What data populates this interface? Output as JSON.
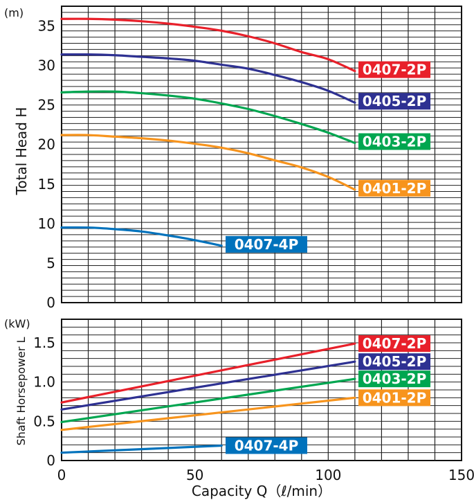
{
  "chart_data": [
    {
      "type": "line",
      "unit_label": "(m)",
      "ylabel": "Total Head H",
      "xlim": [
        0,
        150
      ],
      "ylim": [
        0,
        37.5
      ],
      "yticks": [
        0,
        5,
        10,
        15,
        20,
        25,
        30,
        35
      ],
      "grid": true,
      "series": [
        {
          "name": "0407-2P",
          "color": "#e8202a",
          "x": [
            0,
            10,
            20,
            30,
            40,
            50,
            60,
            70,
            80,
            90,
            100,
            110
          ],
          "y": [
            35.9,
            35.9,
            35.8,
            35.6,
            35.3,
            34.9,
            34.4,
            33.7,
            32.8,
            31.7,
            30.8,
            29.3
          ]
        },
        {
          "name": "0405-2P",
          "color": "#2e3192",
          "x": [
            0,
            10,
            20,
            30,
            40,
            50,
            60,
            70,
            80,
            90,
            100,
            110
          ],
          "y": [
            31.4,
            31.4,
            31.3,
            31.1,
            30.9,
            30.6,
            30.1,
            29.6,
            28.8,
            27.9,
            26.8,
            25.3
          ]
        },
        {
          "name": "0403-2P",
          "color": "#00a650",
          "x": [
            0,
            10,
            20,
            30,
            40,
            50,
            60,
            70,
            80,
            90,
            100,
            110
          ],
          "y": [
            26.6,
            26.7,
            26.7,
            26.5,
            26.2,
            25.8,
            25.2,
            24.5,
            23.6,
            22.6,
            21.5,
            20.2
          ]
        },
        {
          "name": "0401-2P",
          "color": "#f7941d",
          "x": [
            0,
            10,
            20,
            30,
            40,
            50,
            60,
            70,
            80,
            90,
            100,
            110
          ],
          "y": [
            21.2,
            21.2,
            21.0,
            20.8,
            20.5,
            20.1,
            19.6,
            18.9,
            18.0,
            17.1,
            15.9,
            14.3
          ]
        },
        {
          "name": "0407-4P",
          "color": "#0072bc",
          "x": [
            0,
            10,
            20,
            30,
            40,
            50,
            60
          ],
          "y": [
            9.5,
            9.5,
            9.3,
            9.0,
            8.5,
            7.9,
            7.2
          ]
        }
      ]
    },
    {
      "type": "line",
      "unit_label": "(kW)",
      "ylabel": "Shaft Horsepower L",
      "xlabel": "Capacity Q（ℓ/min）",
      "xlim": [
        0,
        150
      ],
      "ylim": [
        0,
        1.8
      ],
      "xticks": [
        0,
        50,
        100,
        150
      ],
      "yticks": [
        0,
        0.5,
        1.0,
        1.5
      ],
      "ytick_labels": [
        "0",
        "0.5",
        "1.0",
        "1.5"
      ],
      "grid": true,
      "series": [
        {
          "name": "0407-2P",
          "color": "#e8202a",
          "x": [
            0,
            110
          ],
          "y": [
            0.74,
            1.49
          ]
        },
        {
          "name": "0405-2P",
          "color": "#2e3192",
          "x": [
            0,
            110
          ],
          "y": [
            0.65,
            1.26
          ]
        },
        {
          "name": "0403-2P",
          "color": "#00a650",
          "x": [
            0,
            110
          ],
          "y": [
            0.49,
            1.04
          ]
        },
        {
          "name": "0401-2P",
          "color": "#f7941d",
          "x": [
            0,
            110
          ],
          "y": [
            0.39,
            0.8
          ]
        },
        {
          "name": "0407-4P",
          "color": "#0072bc",
          "x": [
            0,
            60
          ],
          "y": [
            0.1,
            0.19
          ]
        }
      ]
    }
  ]
}
